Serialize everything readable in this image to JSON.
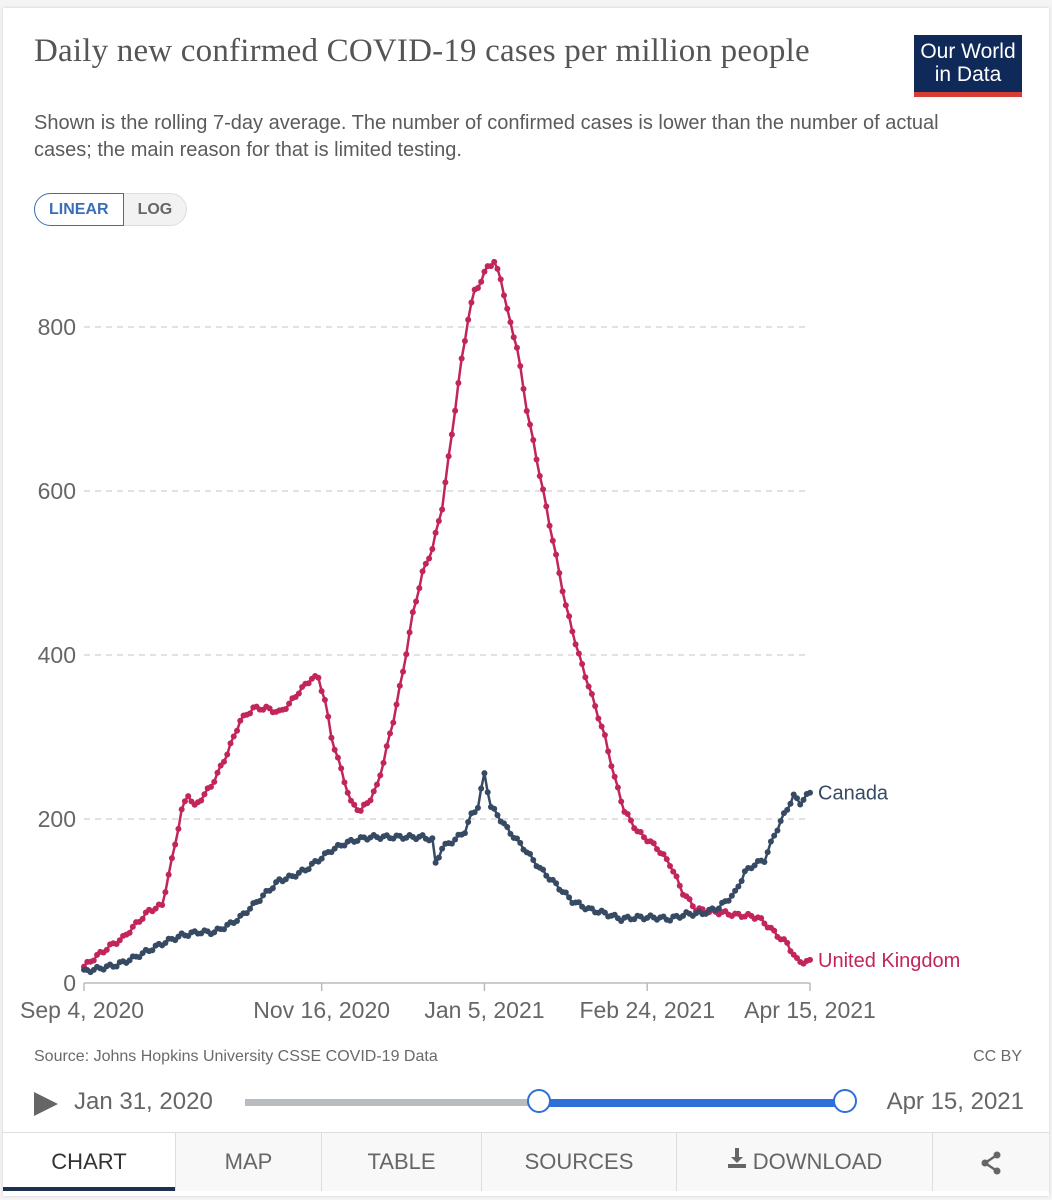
{
  "header": {
    "title": "Daily new confirmed COVID-19 cases per million people",
    "subtitle": "Shown is the rolling 7-day average. The number of confirmed cases is lower than the number of actual cases; the main reason for that is limited testing.",
    "logo_line1": "Our World",
    "logo_line2": "in Data"
  },
  "scale_toggle": {
    "linear_label": "LINEAR",
    "log_label": "LOG",
    "selected": "LINEAR"
  },
  "footer": {
    "source": "Source: Johns Hopkins University CSSE COVID-19 Data",
    "license": "CC BY"
  },
  "timeline": {
    "start_label": "Jan 31, 2020",
    "end_label": "Apr 15, 2021",
    "selected_start_fraction": 0.49,
    "selected_end_fraction": 1.0
  },
  "tabs": [
    {
      "label": "CHART",
      "active": true
    },
    {
      "label": "MAP",
      "active": false
    },
    {
      "label": "TABLE",
      "active": false
    },
    {
      "label": "SOURCES",
      "active": false
    },
    {
      "label": "DOWNLOAD",
      "active": false,
      "icon": "download-icon"
    },
    {
      "label": "",
      "active": false,
      "icon": "share-icon"
    }
  ],
  "colors": {
    "canada": "#374a63",
    "united_kingdom": "#c2255c",
    "grid": "#d0d0d0",
    "axis_text": "#666666",
    "accent": "#2e6fd8"
  },
  "chart_data": {
    "type": "line",
    "title": "Daily new confirmed COVID-19 cases per million people",
    "xlabel": "",
    "ylabel": "",
    "x_start": "Sep 4, 2020",
    "x_end": "Apr 15, 2021",
    "x_days_total": 223,
    "x_ticks": [
      {
        "day": 0,
        "label": "Sep 4, 2020"
      },
      {
        "day": 73,
        "label": "Nov 16, 2020"
      },
      {
        "day": 123,
        "label": "Jan 5, 2021"
      },
      {
        "day": 173,
        "label": "Feb 24, 2021"
      },
      {
        "day": 223,
        "label": "Apr 15, 2021"
      }
    ],
    "y_ticks": [
      0,
      200,
      400,
      600,
      800
    ],
    "ylim": [
      0,
      880
    ],
    "grid": true,
    "legend": "end-of-line labels (right)",
    "series": [
      {
        "name": "United Kingdom",
        "color": "#c2255c",
        "days": [
          0,
          4,
          8,
          12,
          16,
          20,
          24,
          27,
          30,
          32,
          34,
          36,
          38,
          39,
          41,
          44,
          48,
          52,
          56,
          60,
          63,
          66,
          70,
          72,
          74,
          76,
          79,
          82,
          85,
          88,
          90,
          92,
          95,
          98,
          101,
          104,
          107,
          110,
          112,
          114,
          116,
          118,
          120,
          122,
          124,
          126,
          128,
          130,
          133,
          136,
          140,
          144,
          148,
          152,
          156,
          160,
          163,
          166,
          170,
          173,
          176,
          180,
          184,
          188,
          192,
          196,
          200,
          204,
          207,
          210,
          213,
          216,
          219,
          220,
          223
        ],
        "values": [
          20,
          33,
          45,
          55,
          72,
          88,
          95,
          150,
          210,
          230,
          215,
          225,
          235,
          240,
          255,
          280,
          320,
          335,
          335,
          330,
          340,
          355,
          372,
          372,
          345,
          300,
          260,
          220,
          210,
          225,
          240,
          270,
          320,
          380,
          450,
          500,
          530,
          580,
          640,
          700,
          760,
          810,
          845,
          855,
          875,
          878,
          860,
          820,
          775,
          700,
          620,
          540,
          460,
          400,
          350,
          300,
          250,
          210,
          185,
          175,
          165,
          145,
          110,
          90,
          87,
          86,
          83,
          82,
          80,
          70,
          58,
          48,
          28,
          26,
          26
        ]
      },
      {
        "name": "Canada",
        "color": "#374a63",
        "days": [
          0,
          5,
          10,
          15,
          20,
          25,
          30,
          35,
          40,
          45,
          48,
          52,
          56,
          60,
          64,
          68,
          72,
          76,
          80,
          84,
          88,
          92,
          96,
          100,
          104,
          107,
          108,
          110,
          114,
          117,
          119,
          121,
          123,
          125,
          127,
          130,
          135,
          140,
          145,
          150,
          155,
          160,
          165,
          170,
          175,
          180,
          185,
          190,
          195,
          200,
          203,
          206,
          209,
          212,
          215,
          218,
          220,
          223
        ],
        "values": [
          14,
          18,
          22,
          30,
          40,
          50,
          58,
          62,
          62,
          72,
          80,
          95,
          110,
          125,
          130,
          138,
          150,
          162,
          170,
          175,
          178,
          178,
          178,
          178,
          178,
          175,
          145,
          165,
          175,
          185,
          205,
          215,
          255,
          215,
          205,
          188,
          165,
          140,
          120,
          100,
          90,
          85,
          78,
          80,
          80,
          78,
          84,
          85,
          92,
          110,
          135,
          145,
          150,
          180,
          205,
          228,
          220,
          232
        ]
      }
    ]
  }
}
